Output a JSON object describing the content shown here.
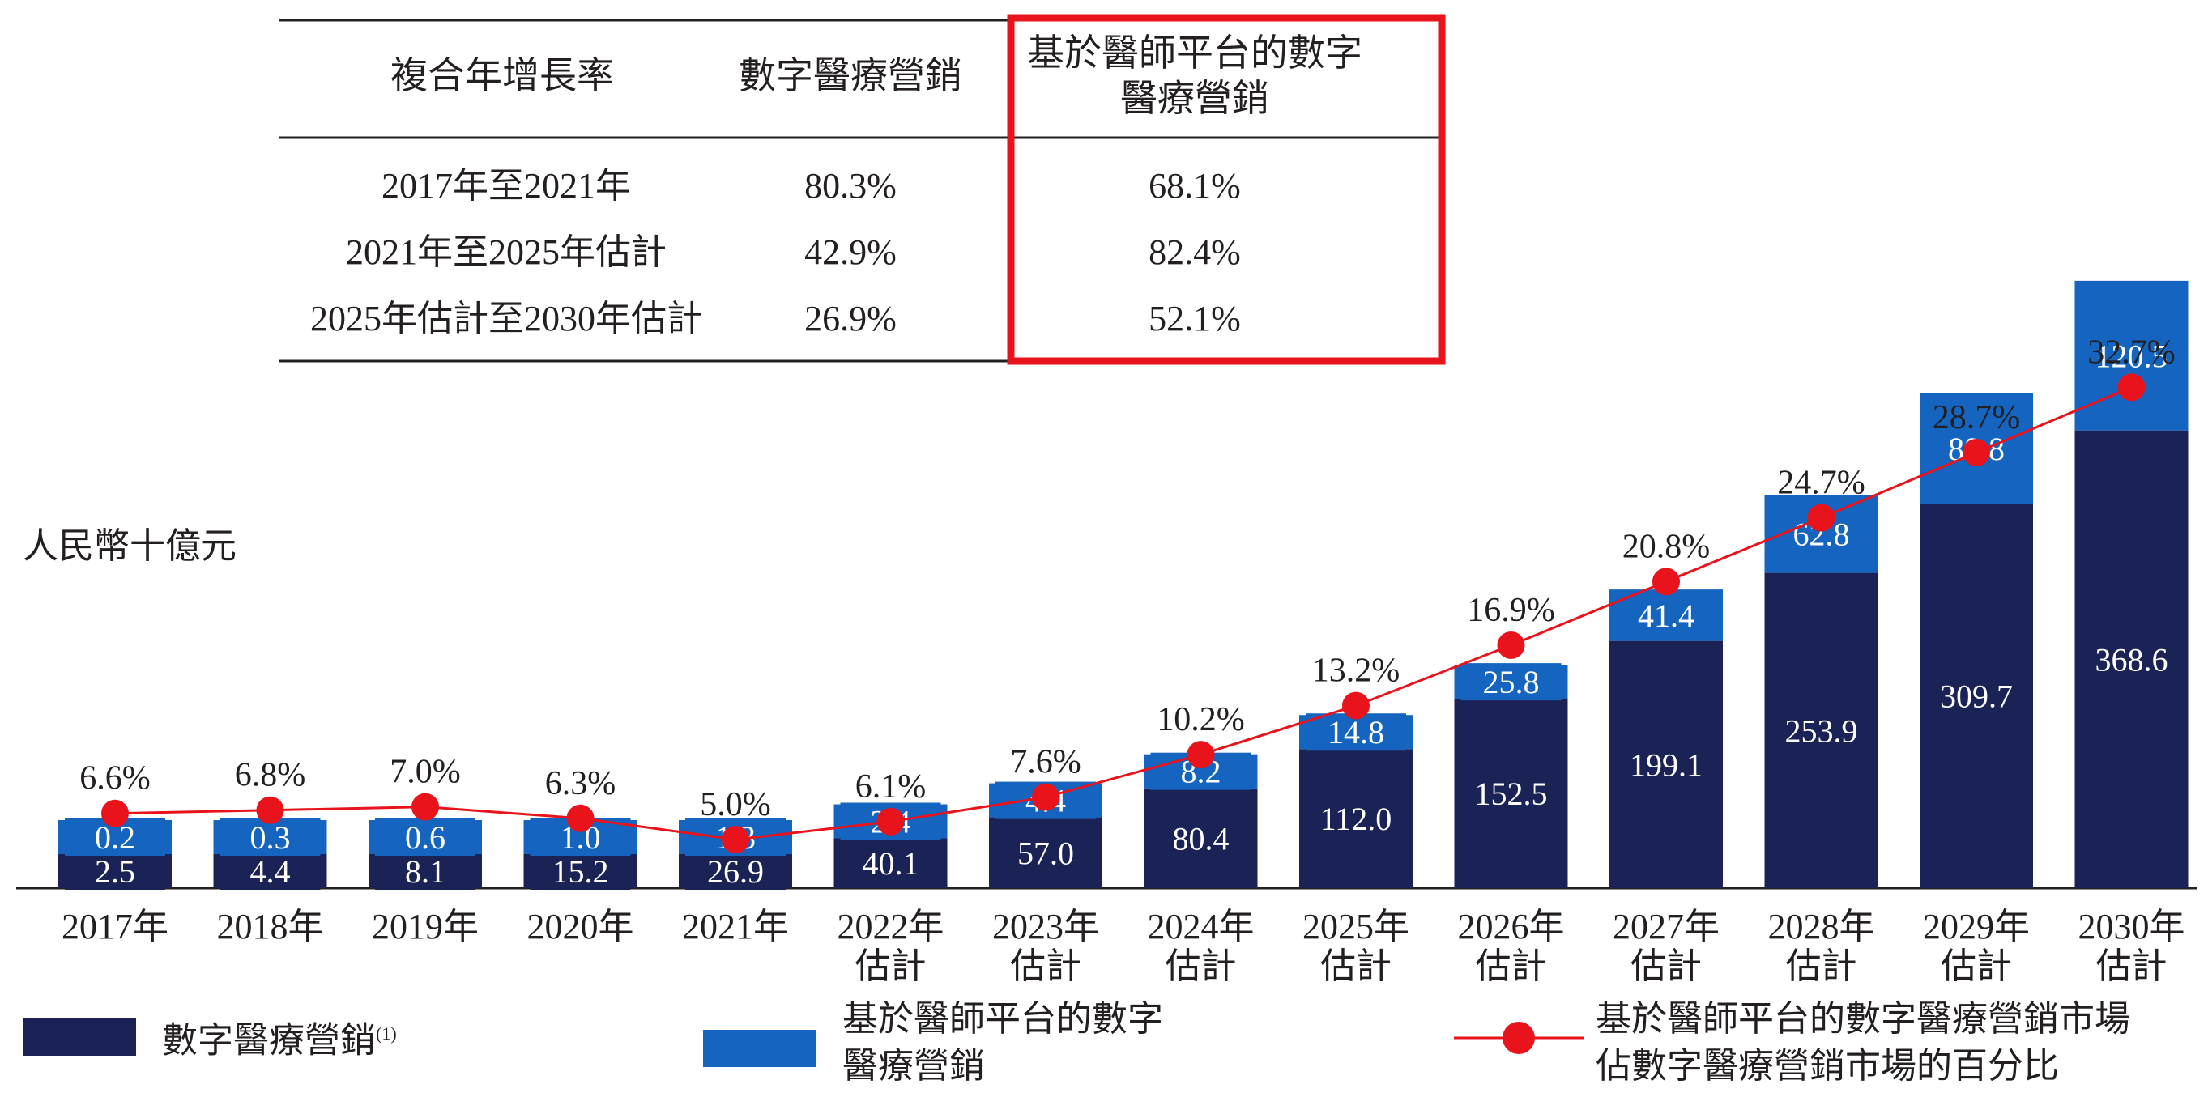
{
  "cagr_table": {
    "headers": [
      "複合年增長率",
      "數字醫療營銷",
      "基於醫師平台的數字",
      "醫療營銷"
    ],
    "rows": [
      {
        "period": "2017年至2021年",
        "digital": "80.3%",
        "physician": "68.1%"
      },
      {
        "period": "2021年至2025年估計",
        "digital": "42.9%",
        "physician": "82.4%"
      },
      {
        "period": "2025年估計至2030年估計",
        "digital": "26.9%",
        "physician": "52.1%"
      }
    ],
    "highlight_color": "#e8131b"
  },
  "unit_label": "人民幣十億元",
  "legend": {
    "digital": "數字醫療營銷",
    "digital_note": "(1)",
    "physician_line1": "基於醫師平台的數字",
    "physician_line2": "醫療營銷",
    "share_line1": "基於醫師平台的數字醫療營銷市場",
    "share_line2": "佔數字醫療營銷市場的百分比"
  },
  "colors": {
    "digital": "#1b2356",
    "physician": "#1565c0",
    "line": "#e8131b",
    "text": "#231f20"
  },
  "chart_data": {
    "type": "bar",
    "stacked": true,
    "unit": "人民幣十億元",
    "categories": [
      [
        "2017年"
      ],
      [
        "2018年"
      ],
      [
        "2019年"
      ],
      [
        "2020年"
      ],
      [
        "2021年"
      ],
      [
        "2022年",
        "估計"
      ],
      [
        "2023年",
        "估計"
      ],
      [
        "2024年",
        "估計"
      ],
      [
        "2025年",
        "估計"
      ],
      [
        "2026年",
        "估計"
      ],
      [
        "2027年",
        "估計"
      ],
      [
        "2028年",
        "估計"
      ],
      [
        "2029年",
        "估計"
      ],
      [
        "2030年",
        "估計"
      ]
    ],
    "series": [
      {
        "name": "數字醫療營銷",
        "values": [
          2.5,
          4.4,
          8.1,
          15.2,
          26.9,
          40.1,
          57.0,
          80.4,
          112.0,
          152.5,
          199.1,
          253.9,
          309.7,
          368.6
        ],
        "labels": [
          "2.5",
          "4.4",
          "8.1",
          "15.2",
          "26.9",
          "40.1",
          "57.0",
          "80.4",
          "112.0",
          "152.5",
          "199.1",
          "253.9",
          "309.7",
          "368.6"
        ]
      },
      {
        "name": "基於醫師平台的數字醫療營銷",
        "values": [
          0.2,
          0.3,
          0.6,
          1.0,
          1.3,
          2.4,
          4.4,
          8.2,
          14.8,
          25.8,
          41.4,
          62.8,
          88.8,
          120.5
        ],
        "labels": [
          "0.2",
          "0.3",
          "0.6",
          "1.0",
          "1.3",
          "2.4",
          "4.4",
          "8.2",
          "14.8",
          "25.8",
          "41.4",
          "62.8",
          "88.8",
          "120.5"
        ]
      }
    ],
    "line_series": {
      "name": "基於醫師平台的數字醫療營銷市場佔數字醫療營銷市場的百分比",
      "values": [
        6.6,
        6.8,
        7.0,
        6.3,
        5.0,
        6.1,
        7.6,
        10.2,
        13.2,
        16.9,
        20.8,
        24.7,
        28.7,
        32.7
      ],
      "labels": [
        "6.6%",
        "6.8%",
        "7.0%",
        "6.3%",
        "5.0%",
        "6.1%",
        "7.6%",
        "10.2%",
        "13.2%",
        "16.9%",
        "20.8%",
        "24.7%",
        "28.7%",
        "32.7%"
      ]
    }
  }
}
